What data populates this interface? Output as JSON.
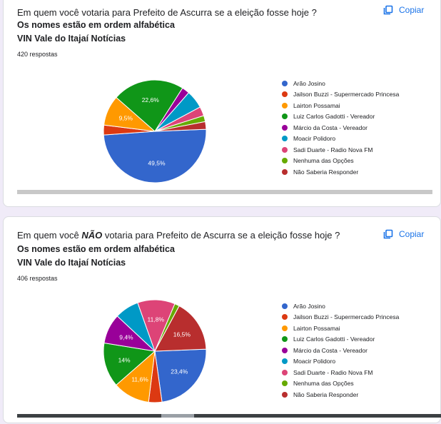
{
  "questions": [
    {
      "title_pre": "Em quem você votaria para Prefeito de Ascurra se a eleição fosse hoje ?",
      "title_em": "",
      "title_post": "",
      "subtitle1": "Os nomes estão em ordem alfabética",
      "subtitle2": "VIN Vale do Itajaí Notícias",
      "count": "420 respostas",
      "copy_label": "Copiar"
    },
    {
      "title_pre": "Em quem você ",
      "title_em": "NÃO",
      "title_post": " votaria para Prefeito de Ascurra se a eleição fosse hoje ?",
      "subtitle1": "Os nomes estão em ordem alfabética",
      "subtitle2": "VIN Vale do Itajaí Notícias",
      "count": "406 respostas",
      "copy_label": "Copiar"
    }
  ],
  "legend": [
    "Arão Josino",
    "Jailson Buzzi - Supermercado Princesa",
    "Lairton Possamai",
    "Luiz Carlos Gadotti - Vereador",
    "Márcio da Costa - Vereador",
    "Moacir Polidoro",
    "Sadi Duarte - Radio Nova FM",
    "Nenhuma das Opções",
    "Não Saberia Responder"
  ],
  "colors": [
    "#3366cc",
    "#dc3912",
    "#ff9900",
    "#109618",
    "#990099",
    "#0099c6",
    "#dd4477",
    "#66aa00",
    "#b82e2e"
  ],
  "icons": {
    "copy": "copy-icon"
  },
  "chart_data": [
    {
      "type": "pie",
      "title": "",
      "categories": [
        "Arão Josino",
        "Jailson Buzzi - Supermercado Princesa",
        "Lairton Possamai",
        "Luiz Carlos Gadotti - Vereador",
        "Márcio da Costa - Vereador",
        "Moacir Polidoro",
        "Sadi Duarte - Radio Nova FM",
        "Nenhuma das Opções",
        "Não Saberia Responder"
      ],
      "values": [
        49.5,
        3.1,
        9.5,
        22.6,
        2.4,
        5.7,
        2.9,
        1.9,
        2.4
      ],
      "labels": [
        "49,5%",
        "",
        "9,5%",
        "22,6%",
        "",
        "",
        "",
        "",
        ""
      ],
      "legend_position": "right"
    },
    {
      "type": "pie",
      "title": "",
      "categories": [
        "Arão Josino",
        "Jailson Buzzi - Supermercado Princesa",
        "Lairton Possamai",
        "Luiz Carlos Gadotti - Vereador",
        "Márcio da Costa - Vereador",
        "Moacir Polidoro",
        "Sadi Duarte - Radio Nova FM",
        "Nenhuma das Opções",
        "Não Saberia Responder"
      ],
      "values": [
        23.4,
        4.2,
        11.6,
        14,
        9.4,
        7.6,
        11.8,
        1.5,
        16.5
      ],
      "labels": [
        "23,4%",
        "",
        "11,6%",
        "14%",
        "9,4%",
        "",
        "11,8%",
        "",
        "16,5%"
      ],
      "legend_position": "right"
    }
  ]
}
